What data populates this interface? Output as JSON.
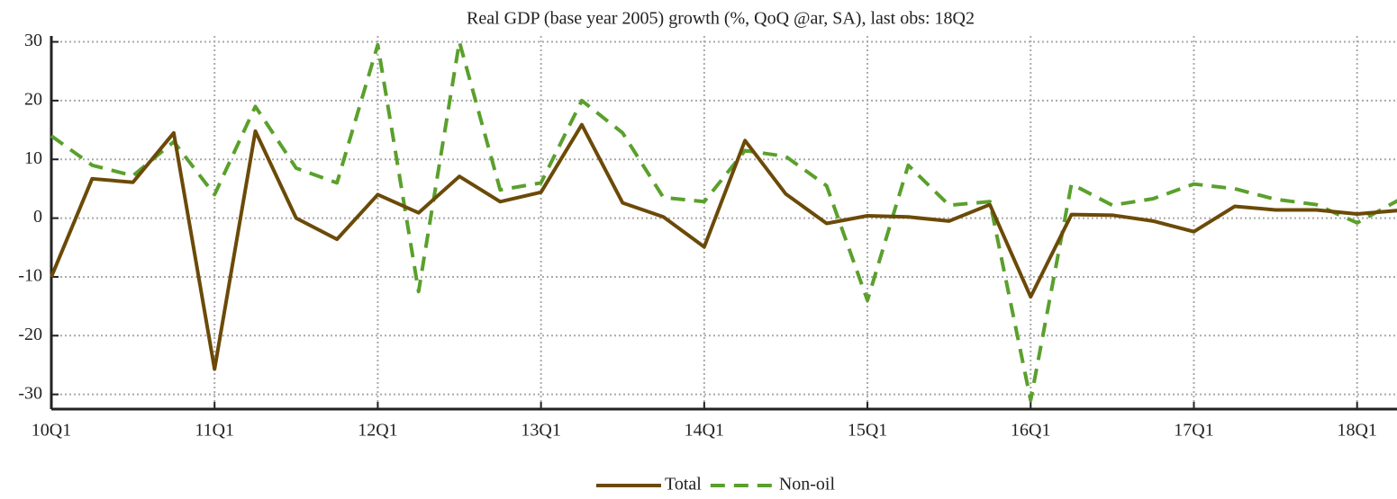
{
  "chart_data": {
    "type": "line",
    "title": "Real GDP (base year 2005) growth (%, QoQ @ar, SA), last obs: 18Q2",
    "categories": [
      "10Q1",
      null,
      null,
      null,
      "11Q1",
      null,
      null,
      null,
      "12Q1",
      null,
      null,
      null,
      "13Q1",
      null,
      null,
      null,
      "14Q1",
      null,
      null,
      null,
      "15Q1",
      null,
      null,
      null,
      "16Q1",
      null,
      null,
      null,
      "17Q1",
      null,
      null,
      null,
      "18Q1",
      null
    ],
    "series": [
      {
        "name": "Total",
        "color": "#6b4a08",
        "values": [
          -10,
          6.7,
          6.1,
          14.5,
          -25.7,
          14.8,
          0,
          -3.6,
          4,
          0.9,
          7.1,
          2.8,
          4.4,
          15.9,
          2.6,
          0.2,
          -4.9,
          13.2,
          4.1,
          -0.9,
          0.4,
          0.2,
          -0.5,
          2.3,
          -13.4,
          0.6,
          0.5,
          -0.5,
          -2.3,
          2,
          1.4,
          1.4,
          0.7,
          1.3
        ]
      },
      {
        "name": "Non-oil",
        "color": "#5aa02c",
        "dashed": true,
        "values": [
          14,
          9,
          7.2,
          13,
          4,
          19,
          8.5,
          6,
          29.5,
          -12.5,
          30,
          4.8,
          6,
          20,
          14.5,
          3.5,
          2.8,
          11.5,
          10.5,
          5.5,
          -14,
          9,
          2.2,
          2.8,
          -31,
          5.8,
          2.2,
          3.3,
          5.8,
          5,
          3.2,
          2.3,
          -0.8,
          3
        ]
      }
    ],
    "ylim": [
      -32.5,
      31
    ],
    "yticks": [
      -30,
      -20,
      -10,
      0,
      10,
      20,
      30
    ],
    "grid": true
  }
}
